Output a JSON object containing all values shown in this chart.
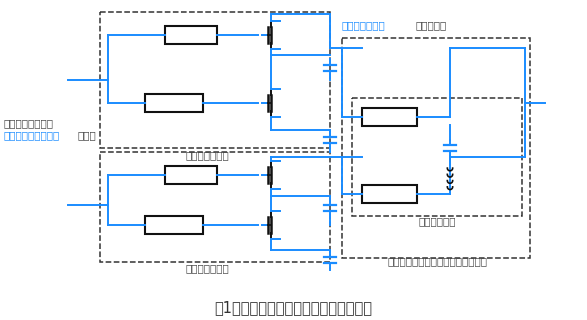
{
  "title": "図1：開発した基地局向けパワーアンプ",
  "title_color": "#333333",
  "title_fontsize": 10.5,
  "bg_color": "#ffffff",
  "blue": "#1a8cff",
  "dark": "#111111",
  "gray": "#444444",
  "label_doherty_top": "ドハティアンプ",
  "label_doherty_bottom": "ドハティアンプ",
  "label_chireidousei": "シレイ合成器",
  "label_outphasing": "アウトフェージングアンプ用合成器",
  "label_harmonics_blue": "高調波処理回路",
  "label_harmonics_black": "を組み込む",
  "label_efficiency": "効率を最大化する",
  "label_input_blue": "独自の入力信号制御",
  "label_input_black": "を使用"
}
